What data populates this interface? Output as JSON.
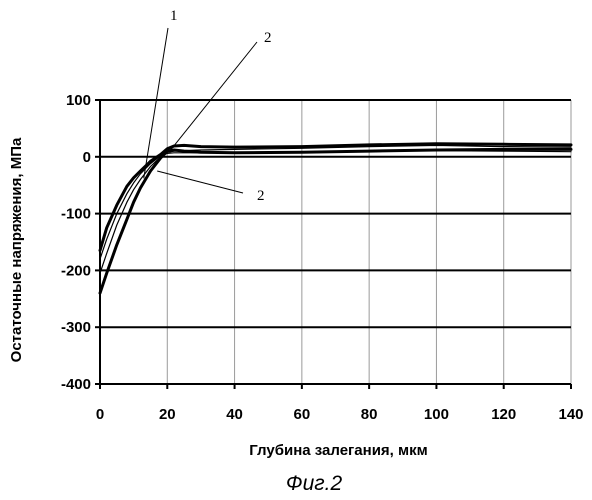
{
  "chart_data": {
    "type": "line",
    "title": "",
    "xlabel": "Глубина залегания, мкм",
    "ylabel": "Остаточные напряжения, МПа",
    "xlim": [
      0,
      140
    ],
    "ylim": [
      -400,
      100
    ],
    "xticks": [
      0,
      20,
      40,
      60,
      80,
      100,
      120,
      140
    ],
    "yticks": [
      100,
      0,
      -100,
      -200,
      -300,
      -400
    ],
    "grid": "horizontal and vertical",
    "legend": "none",
    "series": [
      {
        "style": "bold",
        "x": [
          0,
          2,
          5,
          8,
          10,
          12,
          15,
          18,
          20,
          22,
          25,
          30,
          40,
          60,
          80,
          100,
          120,
          140
        ],
        "y": [
          -240,
          -205,
          -155,
          -110,
          -80,
          -55,
          -25,
          -2,
          10,
          12,
          10,
          8,
          7,
          8,
          10,
          12,
          13,
          13
        ]
      },
      {
        "style": "bold",
        "x": [
          0,
          2,
          5,
          8,
          10,
          12,
          15,
          18,
          20,
          22,
          25,
          30,
          40,
          60,
          80,
          100,
          120,
          140
        ],
        "y": [
          -165,
          -125,
          -85,
          -52,
          -37,
          -25,
          -8,
          4,
          14,
          19,
          20,
          18,
          17,
          18,
          21,
          23,
          22,
          21
        ]
      },
      {
        "style": "thin",
        "x": [
          0,
          2,
          5,
          8,
          10,
          12,
          15,
          18,
          20,
          22,
          25,
          30,
          40,
          60,
          80,
          100,
          120,
          140
        ],
        "y": [
          -205,
          -170,
          -120,
          -80,
          -58,
          -40,
          -17,
          0,
          8,
          10,
          11,
          12,
          13,
          15,
          18,
          20,
          18,
          17
        ]
      },
      {
        "style": "thin",
        "x": [
          0,
          2,
          5,
          8,
          10,
          12,
          15,
          18,
          20,
          22,
          25,
          30,
          40,
          60,
          80,
          100,
          120,
          140
        ],
        "y": [
          -180,
          -145,
          -100,
          -65,
          -46,
          -30,
          -12,
          2,
          6,
          7,
          7,
          7,
          8,
          9,
          10,
          11,
          10,
          9
        ]
      }
    ],
    "annotations": [
      {
        "label": "1",
        "target_x": 13,
        "target_y": -38
      },
      {
        "label": "2",
        "target_x": 21,
        "target_y": 12
      },
      {
        "label": "2",
        "target_x": 17,
        "target_y": -25
      }
    ],
    "caption": "Фиг.2"
  }
}
